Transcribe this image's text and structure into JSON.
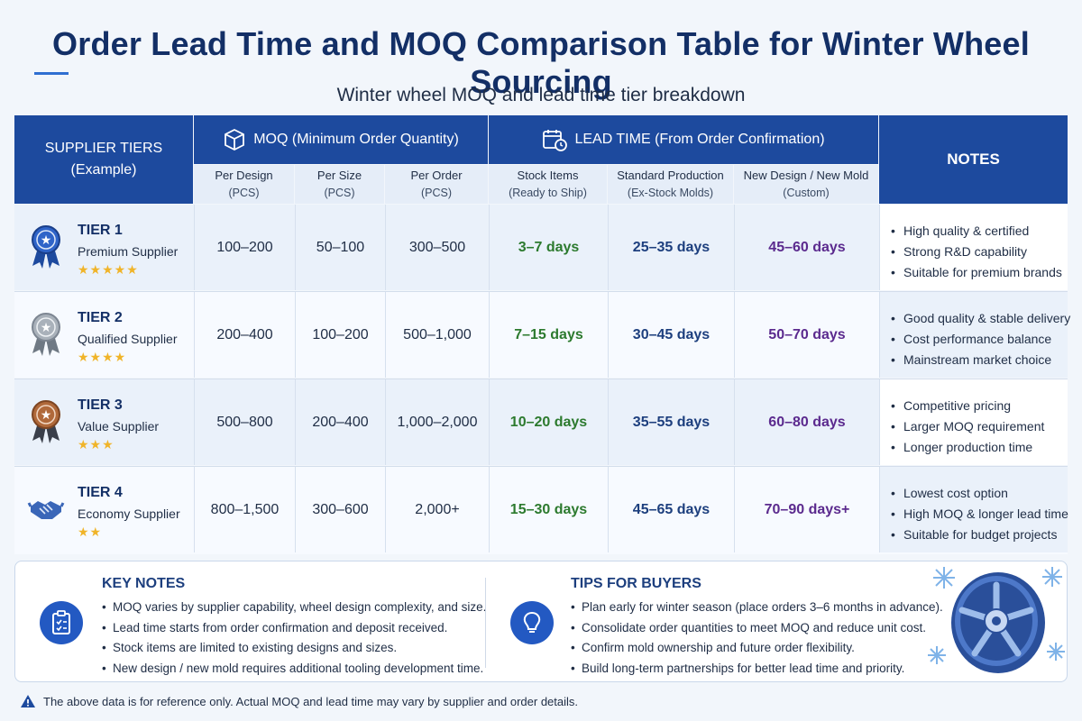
{
  "page": {
    "title": "Order Lead Time and MOQ Comparison Table for Winter Wheel Sourcing",
    "subtitle": "Winter wheel MOQ and lead time tier breakdown"
  },
  "header": {
    "tiers_line1": "SUPPLIER TIERS",
    "tiers_line2": "(Example)",
    "moq": "MOQ (Minimum Order Quantity)",
    "lead": "LEAD TIME (From Order Confirmation)",
    "notes": "NOTES",
    "sub": [
      {
        "l1": "Per Design",
        "l2": "(PCS)"
      },
      {
        "l1": "Per Size",
        "l2": "(PCS)"
      },
      {
        "l1": "Per Order",
        "l2": "(PCS)"
      },
      {
        "l1": "Stock Items",
        "l2": "(Ready to Ship)"
      },
      {
        "l1": "Standard Production",
        "l2": "(Ex-Stock Molds)"
      },
      {
        "l1": "New Design / New Mold",
        "l2": "(Custom)"
      }
    ]
  },
  "tiers": [
    {
      "name": "TIER 1",
      "label": "Premium Supplier",
      "stars": "★★★★★",
      "badge_color": "#2f64c8",
      "per_design": "100–200",
      "per_size": "50–100",
      "per_order": "300–500",
      "stock": "3–7 days",
      "standard": "25–35 days",
      "new_mold": "45–60 days",
      "notes": [
        "High quality & certified",
        "Strong R&D capability",
        "Suitable for premium brands"
      ]
    },
    {
      "name": "TIER 2",
      "label": "Qualified Supplier",
      "stars": "★★★★",
      "badge_color": "#9aa3ad",
      "per_design": "200–400",
      "per_size": "100–200",
      "per_order": "500–1,000",
      "stock": "7–15 days",
      "standard": "30–45 days",
      "new_mold": "50–70 days",
      "notes": [
        "Good quality & stable delivery",
        "Cost performance balance",
        "Mainstream market choice"
      ]
    },
    {
      "name": "TIER 3",
      "label": "Value Supplier",
      "stars": "★★★",
      "badge_color": "#b0693a",
      "per_design": "500–800",
      "per_size": "200–400",
      "per_order": "1,000–2,000",
      "stock": "10–20 days",
      "standard": "35–55 days",
      "new_mold": "60–80 days",
      "notes": [
        "Competitive pricing",
        "Larger MOQ requirement",
        "Longer production time"
      ]
    },
    {
      "name": "TIER 4",
      "label": "Economy Supplier",
      "stars": "★★",
      "badge_color": "#3a66b8",
      "per_design": "800–1,500",
      "per_size": "300–600",
      "per_order": "2,000+",
      "stock": "15–30 days",
      "standard": "45–65 days",
      "new_mold": "70–90 days+",
      "notes": [
        "Lowest cost option",
        "High MOQ & longer lead time",
        "Suitable for budget projects"
      ]
    }
  ],
  "key_notes": {
    "title": "KEY NOTES",
    "items": [
      "MOQ varies by supplier capability, wheel design complexity, and size.",
      "Lead time starts from order confirmation and deposit received.",
      "Stock items are limited to existing designs and sizes.",
      "New design / new mold requires additional tooling development time."
    ]
  },
  "tips": {
    "title": "TIPS FOR BUYERS",
    "items": [
      "Plan early for winter season (place orders 3–6 months in advance).",
      "Consolidate order quantities to meet MOQ and reduce unit cost.",
      "Confirm mold ownership and future order flexibility.",
      "Build long-term partnerships for better lead time and priority."
    ]
  },
  "footer": "The above data is for reference only. Actual MOQ and lead time may vary by supplier and order details.",
  "colors": {
    "header_blue": "#1d4a9e",
    "stock_green": "#2c7a2e",
    "standard_navy": "#1d3f7e",
    "new_mold_purple": "#5b2a8e",
    "star_gold": "#f0b429"
  }
}
